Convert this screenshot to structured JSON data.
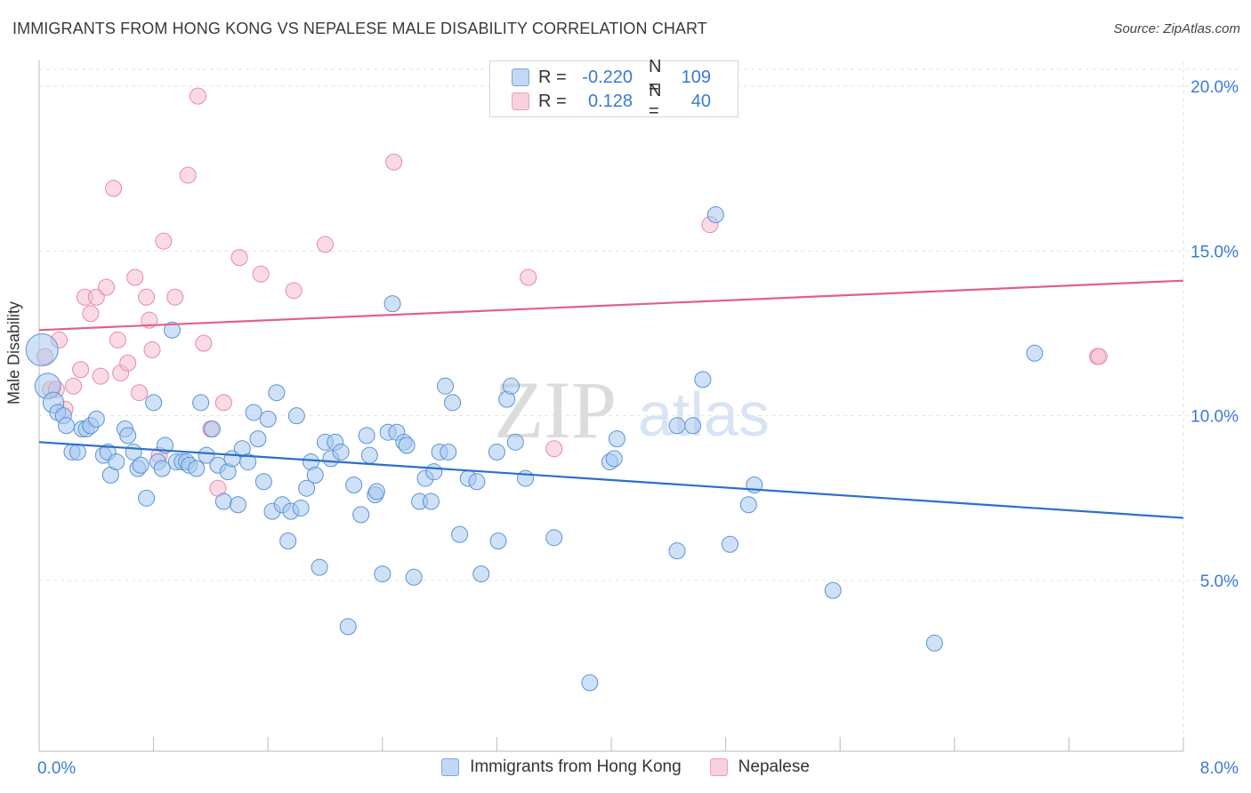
{
  "title": "IMMIGRANTS FROM HONG KONG VS NEPALESE MALE DISABILITY CORRELATION CHART",
  "source": "Source: ZipAtlas.com",
  "watermark": {
    "zip": "ZIP",
    "atlas": "atlas"
  },
  "legend_top": [
    {
      "r_label": "R =",
      "r_value": "-0.220",
      "n_label": "N =",
      "n_value": "109"
    },
    {
      "r_label": "R =",
      "r_value": "0.128",
      "n_label": "N =",
      "n_value": "40"
    }
  ],
  "legend_bottom": [
    "Immigrants from Hong Kong",
    "Nepalese"
  ],
  "colors": {
    "blue_fill": "#a8c8ef",
    "blue_stroke": "#5a93d8",
    "blue_line": "#2a6fce",
    "pink_fill": "#f6bed0",
    "pink_stroke": "#e58aa8",
    "pink_line": "#e0608a",
    "tick_text": "#3a7bd5",
    "grid": "#e2e2e2"
  },
  "chart_data": {
    "type": "scatter",
    "title": "IMMIGRANTS FROM HONG KONG VS NEPALESE MALE DISABILITY CORRELATION CHART",
    "xlabel": "",
    "ylabel": "Male Disability",
    "xlim": [
      0,
      8
    ],
    "ylim": [
      0,
      20.5
    ],
    "x_tick_labels": [
      "0.0%",
      "8.0%"
    ],
    "y_ticks": [
      5,
      10,
      15,
      20
    ],
    "y_tick_labels": [
      "5.0%",
      "10.0%",
      "15.0%",
      "20.0%"
    ],
    "grid": true,
    "legend_position": "top-center",
    "series": [
      {
        "name": "Immigrants from Hong Kong",
        "color": "#a8c8ef",
        "trend": {
          "x": [
            0,
            8
          ],
          "y": [
            9.2,
            6.9
          ]
        },
        "points": [
          {
            "x": 0.02,
            "y": 12.0,
            "s": 2
          },
          {
            "x": 0.06,
            "y": 10.9,
            "s": 1.6
          },
          {
            "x": 0.1,
            "y": 10.4,
            "s": 1.3
          },
          {
            "x": 0.13,
            "y": 10.1
          },
          {
            "x": 0.17,
            "y": 10.0
          },
          {
            "x": 0.19,
            "y": 9.7
          },
          {
            "x": 0.23,
            "y": 8.9
          },
          {
            "x": 0.27,
            "y": 8.9
          },
          {
            "x": 0.3,
            "y": 9.6
          },
          {
            "x": 0.33,
            "y": 9.6
          },
          {
            "x": 0.36,
            "y": 9.7
          },
          {
            "x": 0.4,
            "y": 9.9
          },
          {
            "x": 0.45,
            "y": 8.8
          },
          {
            "x": 0.48,
            "y": 8.9
          },
          {
            "x": 0.5,
            "y": 8.2
          },
          {
            "x": 0.54,
            "y": 8.6
          },
          {
            "x": 0.6,
            "y": 9.6
          },
          {
            "x": 0.62,
            "y": 9.4
          },
          {
            "x": 0.66,
            "y": 8.9
          },
          {
            "x": 0.69,
            "y": 8.4
          },
          {
            "x": 0.71,
            "y": 8.5
          },
          {
            "x": 0.75,
            "y": 7.5
          },
          {
            "x": 0.8,
            "y": 10.4
          },
          {
            "x": 0.83,
            "y": 8.6
          },
          {
            "x": 0.86,
            "y": 8.4
          },
          {
            "x": 0.88,
            "y": 9.1
          },
          {
            "x": 0.93,
            "y": 12.6
          },
          {
            "x": 0.96,
            "y": 8.6
          },
          {
            "x": 1.0,
            "y": 8.6
          },
          {
            "x": 1.03,
            "y": 8.6
          },
          {
            "x": 1.05,
            "y": 8.5
          },
          {
            "x": 1.1,
            "y": 8.4
          },
          {
            "x": 1.13,
            "y": 10.4
          },
          {
            "x": 1.17,
            "y": 8.8
          },
          {
            "x": 1.21,
            "y": 9.6
          },
          {
            "x": 1.25,
            "y": 8.5
          },
          {
            "x": 1.29,
            "y": 7.4
          },
          {
            "x": 1.32,
            "y": 8.3
          },
          {
            "x": 1.35,
            "y": 8.7
          },
          {
            "x": 1.39,
            "y": 7.3
          },
          {
            "x": 1.42,
            "y": 9.0
          },
          {
            "x": 1.46,
            "y": 8.6
          },
          {
            "x": 1.5,
            "y": 10.1
          },
          {
            "x": 1.53,
            "y": 9.3
          },
          {
            "x": 1.57,
            "y": 8.0
          },
          {
            "x": 1.6,
            "y": 9.9
          },
          {
            "x": 1.63,
            "y": 7.1
          },
          {
            "x": 1.66,
            "y": 10.7
          },
          {
            "x": 1.7,
            "y": 7.3
          },
          {
            "x": 1.74,
            "y": 6.2
          },
          {
            "x": 1.76,
            "y": 7.1
          },
          {
            "x": 1.8,
            "y": 10.0
          },
          {
            "x": 1.83,
            "y": 7.2
          },
          {
            "x": 1.87,
            "y": 7.8
          },
          {
            "x": 1.9,
            "y": 8.6
          },
          {
            "x": 1.93,
            "y": 8.2
          },
          {
            "x": 1.96,
            "y": 5.4
          },
          {
            "x": 2.0,
            "y": 9.2
          },
          {
            "x": 2.04,
            "y": 8.7
          },
          {
            "x": 2.07,
            "y": 9.2
          },
          {
            "x": 2.11,
            "y": 8.9
          },
          {
            "x": 2.16,
            "y": 3.6
          },
          {
            "x": 2.2,
            "y": 7.9
          },
          {
            "x": 2.25,
            "y": 7.0
          },
          {
            "x": 2.29,
            "y": 9.4
          },
          {
            "x": 2.31,
            "y": 8.8
          },
          {
            "x": 2.35,
            "y": 7.6
          },
          {
            "x": 2.36,
            "y": 7.7
          },
          {
            "x": 2.4,
            "y": 5.2
          },
          {
            "x": 2.44,
            "y": 9.5
          },
          {
            "x": 2.47,
            "y": 13.4
          },
          {
            "x": 2.5,
            "y": 9.5
          },
          {
            "x": 2.55,
            "y": 9.2
          },
          {
            "x": 2.57,
            "y": 9.1
          },
          {
            "x": 2.62,
            "y": 5.1
          },
          {
            "x": 2.66,
            "y": 7.4
          },
          {
            "x": 2.7,
            "y": 8.1
          },
          {
            "x": 2.74,
            "y": 7.4
          },
          {
            "x": 2.76,
            "y": 8.3
          },
          {
            "x": 2.8,
            "y": 8.9
          },
          {
            "x": 2.84,
            "y": 10.9
          },
          {
            "x": 2.86,
            "y": 8.9
          },
          {
            "x": 2.89,
            "y": 10.4
          },
          {
            "x": 2.94,
            "y": 6.4
          },
          {
            "x": 3.0,
            "y": 8.1
          },
          {
            "x": 3.06,
            "y": 8.0
          },
          {
            "x": 3.09,
            "y": 5.2
          },
          {
            "x": 3.2,
            "y": 8.9
          },
          {
            "x": 3.21,
            "y": 6.2
          },
          {
            "x": 3.27,
            "y": 10.5
          },
          {
            "x": 3.3,
            "y": 10.9
          },
          {
            "x": 3.33,
            "y": 9.2
          },
          {
            "x": 3.4,
            "y": 8.1
          },
          {
            "x": 3.6,
            "y": 6.3
          },
          {
            "x": 3.85,
            "y": 1.9
          },
          {
            "x": 3.99,
            "y": 8.6
          },
          {
            "x": 4.02,
            "y": 8.7
          },
          {
            "x": 4.04,
            "y": 9.3
          },
          {
            "x": 4.46,
            "y": 5.9
          },
          {
            "x": 4.46,
            "y": 9.7
          },
          {
            "x": 4.57,
            "y": 9.7
          },
          {
            "x": 4.64,
            "y": 11.1
          },
          {
            "x": 4.73,
            "y": 16.1
          },
          {
            "x": 4.83,
            "y": 6.1
          },
          {
            "x": 4.96,
            "y": 7.3
          },
          {
            "x": 5.0,
            "y": 7.9
          },
          {
            "x": 5.55,
            "y": 4.7
          },
          {
            "x": 6.96,
            "y": 11.9
          },
          {
            "x": 6.26,
            "y": 3.1
          }
        ]
      },
      {
        "name": "Nepalese",
        "color": "#f6bed0",
        "trend": {
          "x": [
            0,
            8
          ],
          "y": [
            12.6,
            14.1
          ]
        },
        "points": [
          {
            "x": 0.04,
            "y": 11.8
          },
          {
            "x": 0.08,
            "y": 10.8
          },
          {
            "x": 0.12,
            "y": 10.8
          },
          {
            "x": 0.14,
            "y": 12.3
          },
          {
            "x": 0.18,
            "y": 10.2
          },
          {
            "x": 0.24,
            "y": 10.9
          },
          {
            "x": 0.29,
            "y": 11.4
          },
          {
            "x": 0.32,
            "y": 13.6
          },
          {
            "x": 0.36,
            "y": 13.1
          },
          {
            "x": 0.4,
            "y": 13.6
          },
          {
            "x": 0.43,
            "y": 11.2
          },
          {
            "x": 0.47,
            "y": 13.9
          },
          {
            "x": 0.52,
            "y": 16.9
          },
          {
            "x": 0.55,
            "y": 12.3
          },
          {
            "x": 0.57,
            "y": 11.3
          },
          {
            "x": 0.62,
            "y": 11.6
          },
          {
            "x": 0.67,
            "y": 14.2
          },
          {
            "x": 0.7,
            "y": 10.7
          },
          {
            "x": 0.75,
            "y": 13.6
          },
          {
            "x": 0.77,
            "y": 12.9
          },
          {
            "x": 0.79,
            "y": 12.0
          },
          {
            "x": 0.84,
            "y": 8.8
          },
          {
            "x": 0.87,
            "y": 15.3
          },
          {
            "x": 0.95,
            "y": 13.6
          },
          {
            "x": 1.04,
            "y": 17.3
          },
          {
            "x": 1.11,
            "y": 19.7
          },
          {
            "x": 1.15,
            "y": 12.2
          },
          {
            "x": 1.2,
            "y": 9.6
          },
          {
            "x": 1.25,
            "y": 7.8
          },
          {
            "x": 1.29,
            "y": 10.4
          },
          {
            "x": 1.4,
            "y": 14.8
          },
          {
            "x": 1.55,
            "y": 14.3
          },
          {
            "x": 1.78,
            "y": 13.8
          },
          {
            "x": 2.0,
            "y": 15.2
          },
          {
            "x": 2.48,
            "y": 17.7
          },
          {
            "x": 3.42,
            "y": 14.2
          },
          {
            "x": 4.69,
            "y": 15.8
          },
          {
            "x": 7.4,
            "y": 11.8
          },
          {
            "x": 7.41,
            "y": 11.8
          },
          {
            "x": 3.6,
            "y": 9.0
          }
        ]
      }
    ]
  }
}
